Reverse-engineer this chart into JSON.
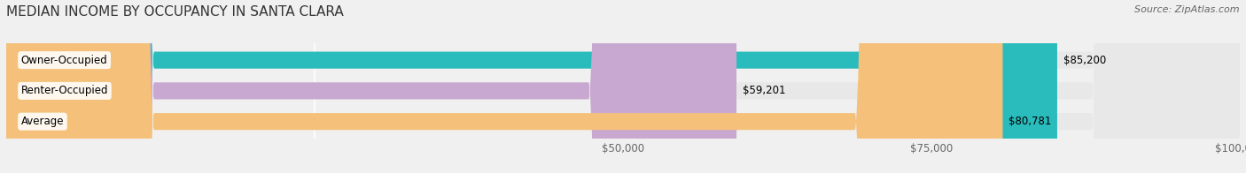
{
  "title": "MEDIAN INCOME BY OCCUPANCY IN SANTA CLARA",
  "source": "Source: ZipAtlas.com",
  "categories": [
    "Owner-Occupied",
    "Renter-Occupied",
    "Average"
  ],
  "values": [
    85200,
    59201,
    80781
  ],
  "bar_colors": [
    "#2abcbc",
    "#c8a8d0",
    "#f5c07a"
  ],
  "bar_labels": [
    "$85,200",
    "$59,201",
    "$80,781"
  ],
  "xlim": [
    0,
    100000
  ],
  "bg_color": "#f0f0f0",
  "bar_bg_color": "#e8e8e8",
  "title_fontsize": 11,
  "label_fontsize": 8.5,
  "value_fontsize": 8.5,
  "source_fontsize": 8
}
